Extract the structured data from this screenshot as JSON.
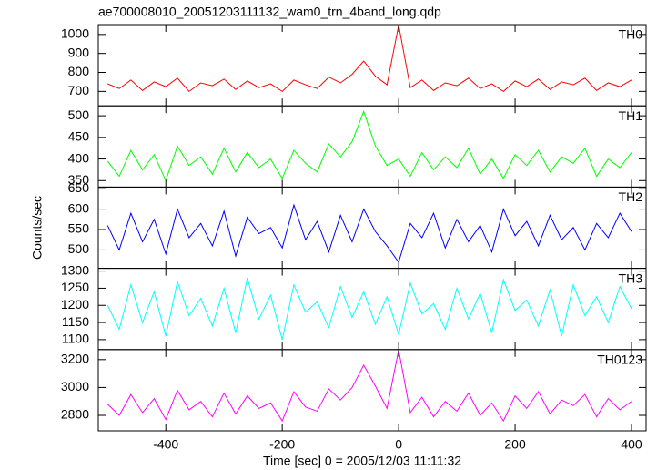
{
  "chart_data": [
    {
      "type": "line",
      "title": "ae700008010_20051203111132_wam0_trn_4band_long.qdp",
      "label": "TH0",
      "color": "#ff0000",
      "x": [
        -500,
        -480,
        -460,
        -440,
        -420,
        -400,
        -380,
        -360,
        -340,
        -320,
        -300,
        -280,
        -260,
        -240,
        -220,
        -200,
        -180,
        -160,
        -140,
        -120,
        -100,
        -80,
        -60,
        -40,
        -20,
        0,
        20,
        40,
        60,
        80,
        100,
        120,
        140,
        160,
        180,
        200,
        220,
        240,
        260,
        280,
        300,
        320,
        340,
        360,
        380,
        400
      ],
      "values": [
        740,
        715,
        760,
        705,
        750,
        725,
        770,
        700,
        745,
        730,
        765,
        710,
        755,
        720,
        740,
        700,
        760,
        735,
        715,
        775,
        745,
        790,
        860,
        780,
        735,
        1050,
        720,
        760,
        705,
        745,
        730,
        770,
        715,
        740,
        700,
        755,
        725,
        765,
        710,
        750,
        735,
        770,
        705,
        745,
        725,
        760
      ],
      "ylim": [
        624,
        1052
      ],
      "yticks": [
        700,
        800,
        900,
        1000
      ]
    },
    {
      "type": "line",
      "label": "TH1",
      "color": "#00ff00",
      "x": [
        -500,
        -480,
        -460,
        -440,
        -420,
        -400,
        -380,
        -360,
        -340,
        -320,
        -300,
        -280,
        -260,
        -240,
        -220,
        -200,
        -180,
        -160,
        -140,
        -120,
        -100,
        -80,
        -60,
        -40,
        -20,
        0,
        20,
        40,
        60,
        80,
        100,
        120,
        140,
        160,
        180,
        200,
        220,
        240,
        260,
        280,
        300,
        320,
        340,
        360,
        380,
        400
      ],
      "values": [
        395,
        360,
        420,
        375,
        410,
        350,
        430,
        385,
        405,
        365,
        425,
        370,
        415,
        380,
        400,
        355,
        420,
        390,
        370,
        435,
        405,
        440,
        510,
        430,
        385,
        400,
        360,
        415,
        375,
        405,
        380,
        425,
        365,
        400,
        355,
        410,
        385,
        420,
        370,
        405,
        390,
        425,
        360,
        400,
        380,
        415
      ],
      "ylim": [
        335,
        523
      ],
      "yticks": [
        350,
        400,
        450,
        500
      ]
    },
    {
      "type": "line",
      "label": "TH2",
      "color": "#0000ff",
      "ylabel": "Counts/sec",
      "x": [
        -500,
        -480,
        -460,
        -440,
        -420,
        -400,
        -380,
        -360,
        -340,
        -320,
        -300,
        -280,
        -260,
        -240,
        -220,
        -200,
        -180,
        -160,
        -140,
        -120,
        -100,
        -80,
        -60,
        -40,
        -20,
        0,
        20,
        40,
        60,
        80,
        100,
        120,
        140,
        160,
        180,
        200,
        220,
        240,
        260,
        280,
        300,
        320,
        340,
        360,
        380,
        400
      ],
      "values": [
        560,
        500,
        590,
        520,
        575,
        490,
        600,
        530,
        565,
        510,
        595,
        485,
        580,
        540,
        555,
        505,
        610,
        525,
        570,
        495,
        585,
        520,
        600,
        545,
        510,
        470,
        565,
        530,
        590,
        505,
        575,
        520,
        560,
        495,
        600,
        535,
        570,
        510,
        585,
        525,
        555,
        500,
        565,
        530,
        590,
        545
      ],
      "ylim": [
        455,
        654
      ],
      "yticks": [
        500,
        550,
        600,
        650
      ]
    },
    {
      "type": "line",
      "label": "TH3",
      "color": "#00ffff",
      "x": [
        -500,
        -480,
        -460,
        -440,
        -420,
        -400,
        -380,
        -360,
        -340,
        -320,
        -300,
        -280,
        -260,
        -240,
        -220,
        -200,
        -180,
        -160,
        -140,
        -120,
        -100,
        -80,
        -60,
        -40,
        -20,
        0,
        20,
        40,
        60,
        80,
        100,
        120,
        140,
        160,
        180,
        200,
        220,
        240,
        260,
        280,
        300,
        320,
        340,
        360,
        380,
        400
      ],
      "values": [
        1200,
        1130,
        1260,
        1150,
        1240,
        1110,
        1270,
        1170,
        1220,
        1140,
        1250,
        1120,
        1280,
        1160,
        1230,
        1100,
        1260,
        1180,
        1210,
        1135,
        1255,
        1165,
        1240,
        1145,
        1225,
        1115,
        1265,
        1175,
        1205,
        1130,
        1250,
        1160,
        1235,
        1120,
        1275,
        1185,
        1215,
        1140,
        1245,
        1110,
        1260,
        1170,
        1225,
        1150,
        1255,
        1190
      ],
      "ylim": [
        1071,
        1308
      ],
      "yticks": [
        1100,
        1150,
        1200,
        1250,
        1300
      ]
    },
    {
      "type": "line",
      "label": "TH0123",
      "color": "#ff00ff",
      "xlabel": "Time [sec] 0 = 2005/12/03 11:11:32",
      "x": [
        -500,
        -480,
        -460,
        -440,
        -420,
        -400,
        -380,
        -360,
        -340,
        -320,
        -300,
        -280,
        -260,
        -240,
        -220,
        -200,
        -180,
        -160,
        -140,
        -120,
        -100,
        -80,
        -60,
        -40,
        -20,
        0,
        20,
        40,
        60,
        80,
        100,
        120,
        140,
        160,
        180,
        200,
        220,
        240,
        260,
        280,
        300,
        320,
        340,
        360,
        380,
        400
      ],
      "values": [
        2880,
        2800,
        2950,
        2820,
        2920,
        2770,
        2980,
        2840,
        2900,
        2790,
        2960,
        2810,
        2940,
        2850,
        2890,
        2760,
        2970,
        2860,
        2830,
        2990,
        2910,
        3000,
        3160,
        3010,
        2850,
        3270,
        2820,
        2930,
        2790,
        2900,
        2830,
        2960,
        2800,
        2890,
        2760,
        2940,
        2850,
        2970,
        2810,
        2910,
        2870,
        2950,
        2790,
        2920,
        2840,
        2900
      ],
      "ylim": [
        2689,
        3272
      ],
      "yticks": [
        2800,
        3000,
        3200
      ],
      "xlim": [
        -516,
        425
      ],
      "xticks": [
        -400,
        -200,
        0,
        200,
        400
      ]
    }
  ]
}
